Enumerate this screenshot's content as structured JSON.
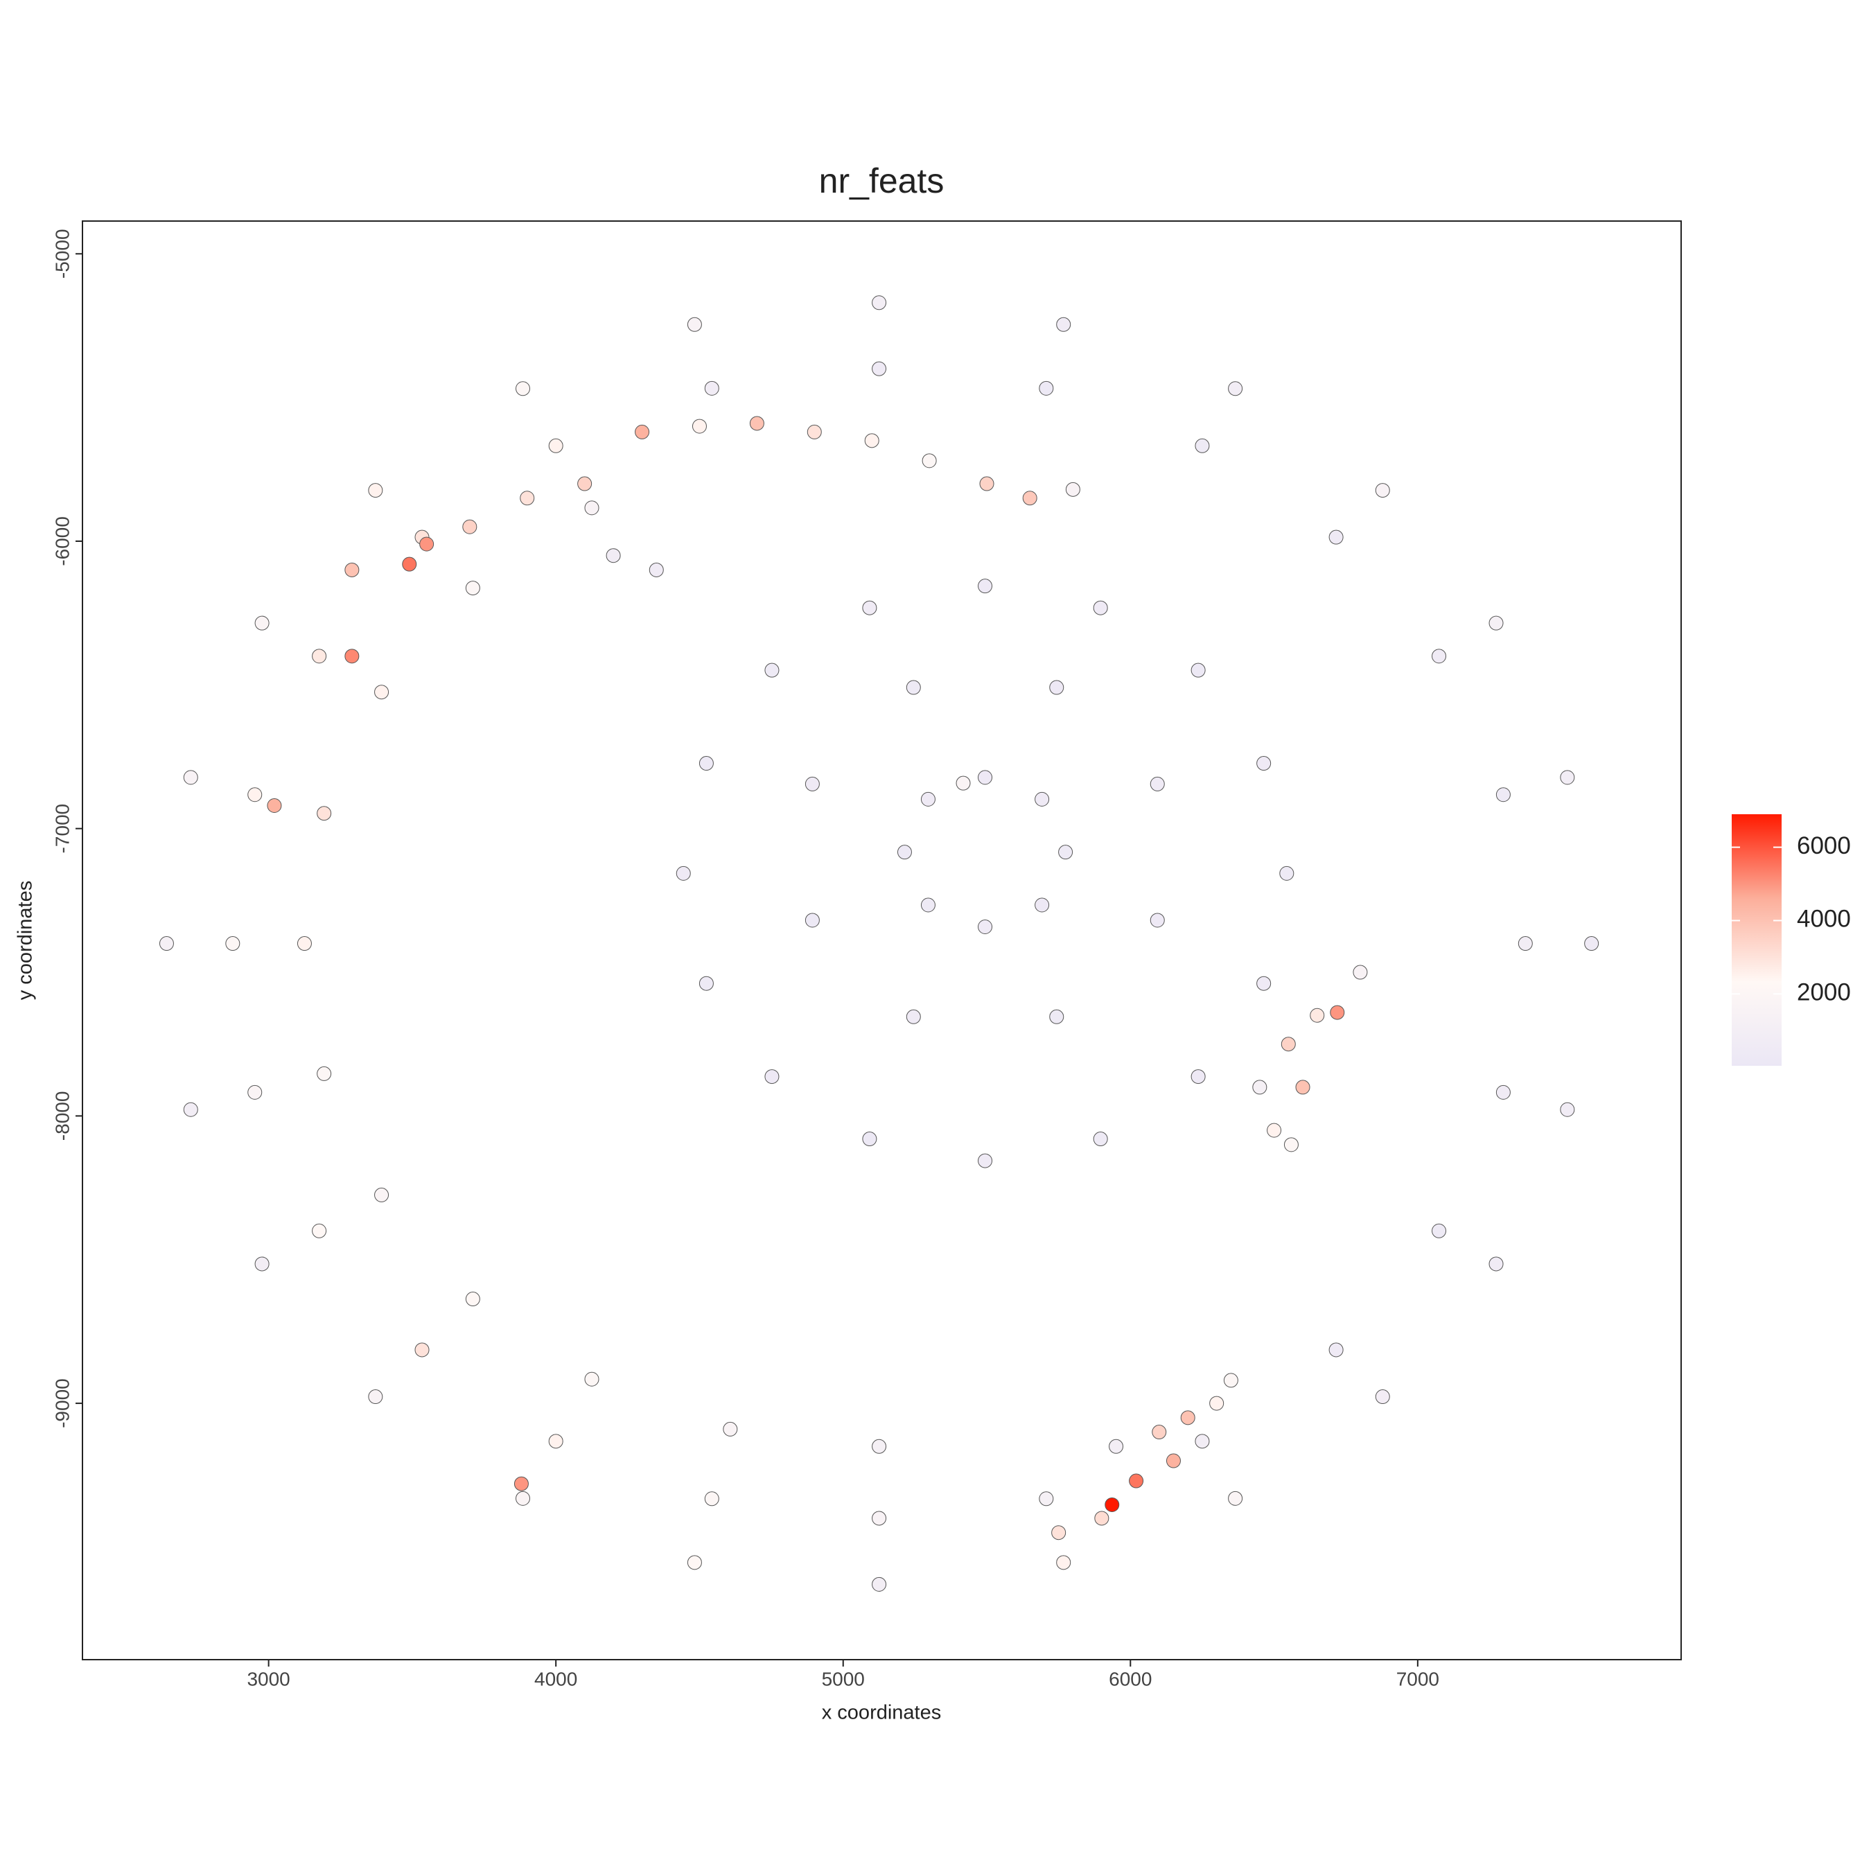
{
  "chart_data": {
    "type": "scatter",
    "title": "nr_feats",
    "xlabel": "x coordinates",
    "ylabel": "y coordinates",
    "xlim": [
      2352,
      7917
    ],
    "ylim": [
      -9892,
      -4886
    ],
    "xticks": [
      3000,
      4000,
      5000,
      6000,
      7000
    ],
    "yticks": [
      -9000,
      -8000,
      -7000,
      -6000,
      -5000
    ],
    "point_stroke": "#555555",
    "colorbar": {
      "lim": [
        40,
        6900
      ],
      "ticks": [
        2000,
        4000,
        6000
      ],
      "colors": [
        "#ebe7f5",
        "#fff8f5",
        "#fcae9a",
        "#ff1a00"
      ]
    },
    "x": [
      7605,
      7521,
      7273,
      6878,
      6365,
      5767,
      5125,
      4483,
      3885,
      3372,
      2977,
      2729,
      2645,
      2729,
      2977,
      3372,
      3885,
      4483,
      5125,
      5767,
      6365,
      6878,
      7273,
      7521,
      7375,
      7298,
      7074,
      6716,
      6250,
      5707,
      5125,
      4543,
      4000,
      3534,
      3176,
      2952,
      2875,
      2952,
      3176,
      3534,
      4000,
      4543,
      5125,
      5707,
      6250,
      6716,
      7074,
      7298,
      4125,
      3711,
      3393,
      3193,
      3125,
      3193,
      3393,
      3711,
      4125,
      4607,
      5125,
      3290,
      3490,
      3550,
      3700,
      3900,
      4100,
      4300,
      4500,
      4700,
      4900,
      5100,
      5300,
      5500,
      5650,
      5800,
      3290,
      3020,
      4200,
      4350,
      6544,
      6464,
      6236,
      5896,
      5494,
      5092,
      4752,
      4524,
      4444,
      4524,
      4752,
      5092,
      5494,
      5896,
      6236,
      6464,
      5774,
      5692,
      5494,
      5296,
      5214,
      5296,
      5494,
      5692,
      6094,
      5743,
      5245,
      4893,
      4893,
      5245,
      5743,
      6094,
      5418,
      6550,
      6600,
      6500,
      6650,
      6720,
      6800,
      6560,
      6450,
      6100,
      6200,
      6020,
      5936,
      6300,
      6150,
      5950,
      6350,
      3880,
      5750,
      5900
    ],
    "y": [
      -7400,
      -6822,
      -6285,
      -5823,
      -5469,
      -5246,
      -5170,
      -5246,
      -5469,
      -5823,
      -6285,
      -6822,
      -7400,
      -7978,
      -8515,
      -8977,
      -9331,
      -9554,
      -9630,
      -9554,
      -9331,
      -8977,
      -8515,
      -7978,
      -7400,
      -6882,
      -6400,
      -5986,
      -5668,
      -5468,
      -5400,
      -5468,
      -5668,
      -5986,
      -6400,
      -6882,
      -7400,
      -7918,
      -8400,
      -8814,
      -9132,
      -9332,
      -9400,
      -9332,
      -9132,
      -8814,
      -8400,
      -7918,
      -5884,
      -6163,
      -6525,
      -6947,
      -7400,
      -7853,
      -8275,
      -8637,
      -8916,
      -9090,
      -9150,
      -6100,
      -6080,
      -6010,
      -5950,
      -5850,
      -5800,
      -5620,
      -5600,
      -5590,
      -5620,
      -5650,
      -5720,
      -5800,
      -5850,
      -5820,
      -6400,
      -6920,
      -6050,
      -6100,
      -7156,
      -6773,
      -6449,
      -6232,
      -6156,
      -6232,
      -6449,
      -6773,
      -7156,
      -7539,
      -7863,
      -8080,
      -8156,
      -8080,
      -7863,
      -7539,
      -7082,
      -6898,
      -6822,
      -6898,
      -7082,
      -7266,
      -7342,
      -7266,
      -6845,
      -6509,
      -6509,
      -6845,
      -7319,
      -7655,
      -7655,
      -7319,
      -6842,
      -7750,
      -7900,
      -8050,
      -7650,
      -7640,
      -7500,
      -8100,
      -7900,
      -9100,
      -9050,
      -9270,
      -9353,
      -9000,
      -9200,
      -9150,
      -8920,
      -9280,
      -9450,
      -9400
    ],
    "values": [
      500,
      800,
      1200,
      1500,
      800,
      600,
      1000,
      1500,
      2000,
      2500,
      1800,
      1500,
      1200,
      800,
      1000,
      1500,
      1800,
      2200,
      1000,
      2500,
      1800,
      900,
      600,
      700,
      800,
      400,
      600,
      500,
      400,
      300,
      500,
      700,
      2500,
      3000,
      2800,
      2500,
      2000,
      1800,
      2200,
      3000,
      2500,
      2000,
      1500,
      1200,
      800,
      500,
      400,
      600,
      1500,
      2000,
      2500,
      3000,
      2500,
      2000,
      1800,
      2200,
      2000,
      1600,
      1200,
      4000,
      5500,
      5000,
      3500,
      3000,
      3500,
      4500,
      2500,
      4000,
      3000,
      2500,
      2000,
      3500,
      3800,
      1500,
      5200,
      4500,
      700,
      600,
      400,
      500,
      300,
      450,
      350,
      600,
      400,
      300,
      500,
      400,
      350,
      300,
      450,
      400,
      350,
      500,
      400,
      500,
      350,
      450,
      300,
      400,
      500,
      350,
      450,
      350,
      400,
      500,
      300,
      500,
      400,
      350,
      1800,
      3500,
      4000,
      2500,
      2800,
      5000,
      1500,
      2000,
      1200,
      3500,
      4000,
      5500,
      6900,
      2500,
      4500,
      1000,
      2000,
      5000,
      3000,
      3200
    ]
  }
}
